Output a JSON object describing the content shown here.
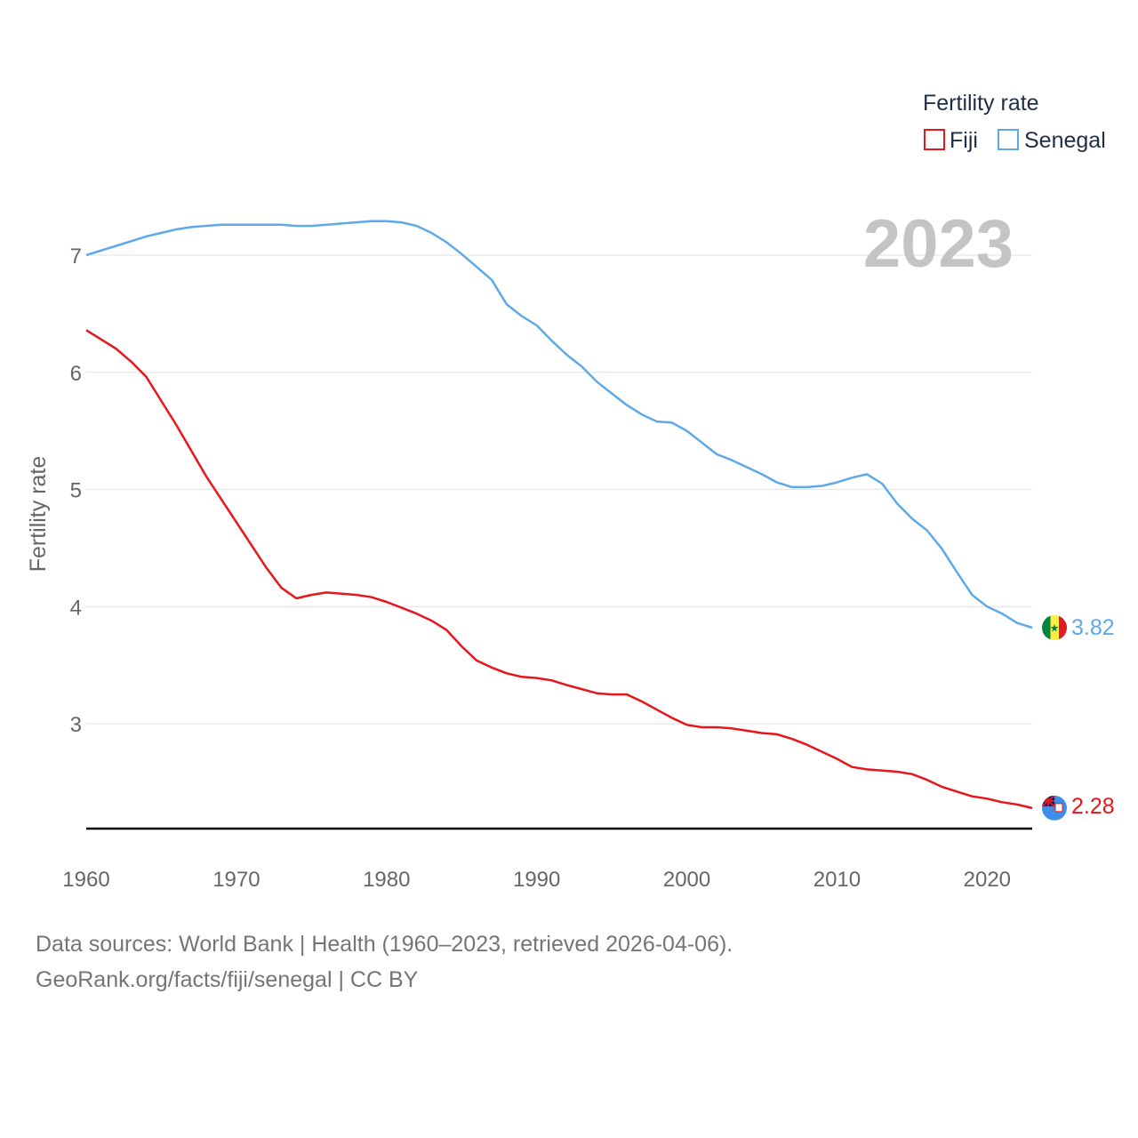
{
  "chart_data": {
    "type": "line",
    "title": "",
    "ylabel": "Fertility rate",
    "xlabel": "",
    "xlim": [
      1960,
      2023
    ],
    "ylim": [
      2.1,
      7.5
    ],
    "yticks": [
      3,
      4,
      5,
      6,
      7
    ],
    "xticks": [
      1960,
      1970,
      1980,
      1990,
      2000,
      2010,
      2020
    ],
    "year_label": "2023",
    "legend": {
      "title": "Fertility rate",
      "position": "top-right"
    },
    "series": [
      {
        "name": "Fiji",
        "color": "#e8151b",
        "end_label": "2.28",
        "flag": "fiji-flag",
        "x": [
          1960,
          1962,
          1963,
          1964,
          1966,
          1968,
          1970,
          1972,
          1973,
          1974,
          1975,
          1976,
          1978,
          1979,
          1980,
          1981,
          1982,
          1983,
          1984,
          1985,
          1986,
          1987,
          1988,
          1989,
          1990,
          1991,
          1992,
          1994,
          1995,
          1996,
          1997,
          1998,
          1999,
          2000,
          2001,
          2002,
          2003,
          2004,
          2005,
          2006,
          2007,
          2008,
          2009,
          2010,
          2011,
          2012,
          2014,
          2015,
          2016,
          2017,
          2018,
          2019,
          2020,
          2021,
          2022,
          2023
        ],
        "values": [
          6.36,
          6.2,
          6.09,
          5.96,
          5.55,
          5.11,
          4.72,
          4.33,
          4.16,
          4.07,
          4.1,
          4.12,
          4.1,
          4.08,
          4.04,
          3.99,
          3.94,
          3.88,
          3.8,
          3.66,
          3.54,
          3.48,
          3.43,
          3.4,
          3.39,
          3.37,
          3.33,
          3.26,
          3.25,
          3.25,
          3.19,
          3.12,
          3.05,
          2.99,
          2.97,
          2.97,
          2.96,
          2.94,
          2.92,
          2.91,
          2.87,
          2.82,
          2.76,
          2.7,
          2.63,
          2.61,
          2.59,
          2.57,
          2.52,
          2.46,
          2.42,
          2.38,
          2.36,
          2.33,
          2.31,
          2.28
        ]
      },
      {
        "name": "Senegal",
        "color": "#5da9e9",
        "end_label": "3.82",
        "flag": "senegal-flag",
        "x": [
          1960,
          1962,
          1964,
          1966,
          1967,
          1969,
          1971,
          1973,
          1974,
          1975,
          1977,
          1979,
          1980,
          1981,
          1982,
          1983,
          1984,
          1985,
          1986,
          1987,
          1988,
          1989,
          1990,
          1991,
          1992,
          1993,
          1994,
          1995,
          1996,
          1997,
          1998,
          1999,
          2000,
          2001,
          2002,
          2003,
          2004,
          2005,
          2006,
          2007,
          2008,
          2009,
          2010,
          2011,
          2012,
          2013,
          2014,
          2015,
          2016,
          2017,
          2018,
          2019,
          2020,
          2021,
          2022,
          2023
        ],
        "values": [
          7.0,
          7.08,
          7.16,
          7.22,
          7.24,
          7.26,
          7.26,
          7.26,
          7.25,
          7.25,
          7.27,
          7.29,
          7.29,
          7.28,
          7.25,
          7.19,
          7.11,
          7.01,
          6.9,
          6.79,
          6.58,
          6.48,
          6.4,
          6.27,
          6.15,
          6.05,
          5.92,
          5.82,
          5.72,
          5.64,
          5.58,
          5.57,
          5.5,
          5.4,
          5.3,
          5.25,
          5.19,
          5.13,
          5.06,
          5.02,
          5.02,
          5.03,
          5.06,
          5.1,
          5.13,
          5.05,
          4.88,
          4.75,
          4.65,
          4.49,
          4.29,
          4.1,
          4.0,
          3.94,
          3.86,
          3.82
        ]
      }
    ]
  },
  "source": {
    "line1": "Data sources: World Bank | Health (1960–2023, retrieved 2026-04-06).",
    "line2": "GeoRank.org/facts/fiji/senegal | CC BY"
  }
}
